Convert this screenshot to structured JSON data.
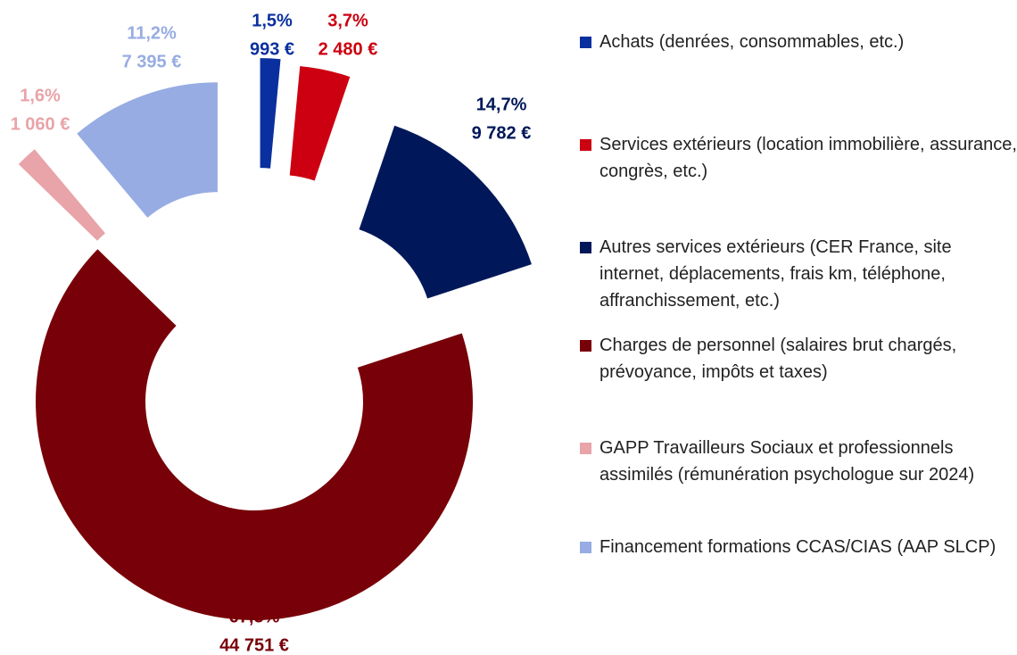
{
  "chart_data": {
    "type": "donut",
    "categories": [
      "Achats (denrées, consommables, etc.)",
      "Services extérieurs (location immobilière, assurance, congrès, etc.)",
      "Autres services extérieurs (CER France, site internet, déplacements, frais km, téléphone, affranchissement, etc.)",
      "Charges de personnel (salaires brut chargés, prévoyance, impôts et taxes)",
      "GAPP Travailleurs Sociaux et professionnels assimilés (rémunération psychologue sur 2024)",
      "Financement formations CCAS/CIAS (AAP SLCP)"
    ],
    "values": [
      993,
      2480,
      9782,
      44751,
      1060,
      7395
    ],
    "value_labels": [
      "993 €",
      "2 480 €",
      "9 782 €",
      "44 751 €",
      "1 060 €",
      "7 395 €"
    ],
    "percentages": [
      1.5,
      3.7,
      14.7,
      67.3,
      1.6,
      11.2
    ],
    "percentage_labels": [
      "1,5%",
      "3,7%",
      "14,7%",
      "67,3%",
      "1,6%",
      "11,2%"
    ],
    "colors": [
      "#0a2f9e",
      "#cc0010",
      "#001859",
      "#780008",
      "#e8a4a8",
      "#97ace3"
    ],
    "legend": "right"
  }
}
